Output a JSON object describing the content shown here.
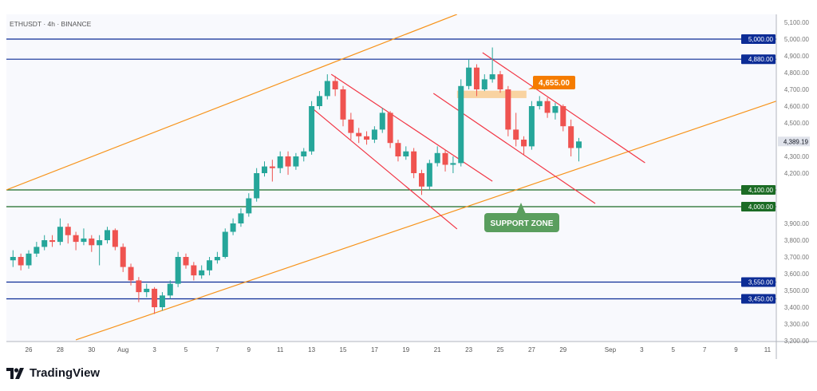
{
  "chart_data": {
    "type": "candlestick",
    "title": "ETHUSDT · 4h · BINANCE",
    "symbol": "ETHUSDT",
    "timeframe": "4h",
    "exchange": "BINANCE",
    "ylim": [
      3200,
      5150
    ],
    "y_ticks": [
      "5,100.00",
      "5,000.00",
      "4,900.00",
      "4,800.00",
      "4,700.00",
      "4,600.00",
      "4,500.00",
      "4,300.00",
      "4,200.00",
      "3,900.00",
      "3,800.00",
      "3,700.00",
      "3,600.00",
      "3,500.00",
      "3,400.00",
      "3,300.00",
      "3,200.00"
    ],
    "y_tick_values": [
      5100,
      5000,
      4900,
      4800,
      4700,
      4600,
      4500,
      4300,
      4200,
      3900,
      3800,
      3700,
      3600,
      3500,
      3400,
      3300,
      3200
    ],
    "x_ticks": [
      {
        "label": "26",
        "time": "Jul 26 00:00"
      },
      {
        "label": "28",
        "time": "Jul 28 00:00"
      },
      {
        "label": "30",
        "time": "Jul 30 00:00"
      },
      {
        "label": "Aug",
        "time": "Aug 1 00:00"
      },
      {
        "label": "3",
        "time": "Aug 3 00:00"
      },
      {
        "label": "5",
        "time": "Aug 5 00:00"
      },
      {
        "label": "7",
        "time": "Aug 7 00:00"
      },
      {
        "label": "9",
        "time": "Aug 9 00:00"
      },
      {
        "label": "11",
        "time": "Aug 11 00:00"
      },
      {
        "label": "13",
        "time": "Aug 13 00:00"
      },
      {
        "label": "15",
        "time": "Aug 15 00:00"
      },
      {
        "label": "17",
        "time": "Aug 17 00:00"
      },
      {
        "label": "19",
        "time": "Aug 19 00:00"
      },
      {
        "label": "21",
        "time": "Aug 21 00:00"
      },
      {
        "label": "23",
        "time": "Aug 23 00:00"
      },
      {
        "label": "25",
        "time": "Aug 25 00:00"
      },
      {
        "label": "27",
        "time": "Aug 27 00:00"
      },
      {
        "label": "29",
        "time": "Aug 29 00:00"
      },
      {
        "label": "Sep",
        "time": "Sep 1 00:00"
      },
      {
        "label": "3",
        "time": "Sep 3 00:00"
      },
      {
        "label": "5",
        "time": "Sep 5 00:00"
      },
      {
        "label": "7",
        "time": "Sep 7 00:00"
      },
      {
        "label": "9",
        "time": "Sep 9 00:00"
      },
      {
        "label": "11",
        "time": "Sep 11 00:00"
      }
    ],
    "candles_columns": [
      "time",
      "open",
      "high",
      "low",
      "close"
    ],
    "candles": [
      [
        "Jul 25 00:00",
        3680,
        3740,
        3640,
        3700
      ],
      [
        "Jul 25 12:00",
        3700,
        3720,
        3620,
        3650
      ],
      [
        "Jul 26 00:00",
        3650,
        3740,
        3630,
        3720
      ],
      [
        "Jul 26 12:00",
        3720,
        3790,
        3700,
        3760
      ],
      [
        "Jul 27 00:00",
        3760,
        3830,
        3740,
        3800
      ],
      [
        "Jul 27 12:00",
        3800,
        3830,
        3760,
        3790
      ],
      [
        "Jul 28 00:00",
        3790,
        3930,
        3770,
        3880
      ],
      [
        "Jul 28 12:00",
        3880,
        3900,
        3780,
        3830
      ],
      [
        "Jul 29 00:00",
        3830,
        3850,
        3740,
        3790
      ],
      [
        "Jul 29 12:00",
        3790,
        3870,
        3770,
        3810
      ],
      [
        "Jul 30 00:00",
        3810,
        3830,
        3730,
        3770
      ],
      [
        "Jul 30 12:00",
        3770,
        3830,
        3650,
        3800
      ],
      [
        "Jul 31 00:00",
        3800,
        3880,
        3780,
        3860
      ],
      [
        "Jul 31 12:00",
        3860,
        3870,
        3740,
        3760
      ],
      [
        "Aug 1 00:00",
        3760,
        3780,
        3610,
        3640
      ],
      [
        "Aug 1 12:00",
        3640,
        3660,
        3530,
        3560
      ],
      [
        "Aug 2 00:00",
        3560,
        3580,
        3430,
        3490
      ],
      [
        "Aug 2 12:00",
        3490,
        3540,
        3460,
        3510
      ],
      [
        "Aug 3 00:00",
        3510,
        3520,
        3360,
        3400
      ],
      [
        "Aug 3 12:00",
        3400,
        3490,
        3380,
        3470
      ],
      [
        "Aug 4 00:00",
        3470,
        3560,
        3450,
        3540
      ],
      [
        "Aug 4 12:00",
        3540,
        3730,
        3520,
        3700
      ],
      [
        "Aug 5 00:00",
        3700,
        3720,
        3630,
        3650
      ],
      [
        "Aug 5 12:00",
        3650,
        3670,
        3560,
        3590
      ],
      [
        "Aug 6 00:00",
        3590,
        3650,
        3570,
        3620
      ],
      [
        "Aug 6 12:00",
        3620,
        3700,
        3590,
        3680
      ],
      [
        "Aug 7 00:00",
        3680,
        3730,
        3660,
        3700
      ],
      [
        "Aug 7 12:00",
        3700,
        3870,
        3690,
        3850
      ],
      [
        "Aug 8 00:00",
        3850,
        3930,
        3830,
        3900
      ],
      [
        "Aug 8 12:00",
        3900,
        3990,
        3880,
        3960
      ],
      [
        "Aug 9 00:00",
        3960,
        4080,
        3940,
        4050
      ],
      [
        "Aug 9 12:00",
        4050,
        4230,
        4030,
        4200
      ],
      [
        "Aug 10 00:00",
        4200,
        4270,
        4180,
        4240
      ],
      [
        "Aug 10 12:00",
        4240,
        4280,
        4150,
        4230
      ],
      [
        "Aug 11 00:00",
        4230,
        4330,
        4200,
        4300
      ],
      [
        "Aug 11 12:00",
        4300,
        4330,
        4190,
        4240
      ],
      [
        "Aug 12 00:00",
        4240,
        4320,
        4220,
        4300
      ],
      [
        "Aug 12 12:00",
        4300,
        4350,
        4270,
        4330
      ],
      [
        "Aug 13 00:00",
        4330,
        4630,
        4310,
        4600
      ],
      [
        "Aug 13 12:00",
        4600,
        4690,
        4580,
        4660
      ],
      [
        "Aug 14 00:00",
        4660,
        4790,
        4640,
        4750
      ],
      [
        "Aug 14 12:00",
        4750,
        4780,
        4660,
        4700
      ],
      [
        "Aug 15 00:00",
        4700,
        4720,
        4480,
        4520
      ],
      [
        "Aug 15 12:00",
        4520,
        4560,
        4400,
        4440
      ],
      [
        "Aug 16 00:00",
        4440,
        4470,
        4380,
        4420
      ],
      [
        "Aug 16 12:00",
        4420,
        4450,
        4370,
        4400
      ],
      [
        "Aug 17 00:00",
        4400,
        4480,
        4380,
        4460
      ],
      [
        "Aug 17 12:00",
        4460,
        4590,
        4440,
        4560
      ],
      [
        "Aug 18 00:00",
        4560,
        4570,
        4350,
        4380
      ],
      [
        "Aug 18 12:00",
        4380,
        4400,
        4270,
        4300
      ],
      [
        "Aug 19 00:00",
        4300,
        4360,
        4280,
        4330
      ],
      [
        "Aug 19 12:00",
        4330,
        4350,
        4170,
        4200
      ],
      [
        "Aug 20 00:00",
        4200,
        4220,
        4070,
        4120
      ],
      [
        "Aug 20 12:00",
        4120,
        4280,
        4100,
        4260
      ],
      [
        "Aug 21 00:00",
        4260,
        4360,
        4240,
        4320
      ],
      [
        "Aug 21 12:00",
        4320,
        4340,
        4210,
        4250
      ],
      [
        "Aug 22 00:00",
        4250,
        4300,
        4200,
        4260
      ],
      [
        "Aug 22 12:00",
        4260,
        4760,
        4240,
        4720
      ],
      [
        "Aug 23 00:00",
        4720,
        4880,
        4700,
        4830
      ],
      [
        "Aug 23 12:00",
        4830,
        4850,
        4660,
        4700
      ],
      [
        "Aug 24 00:00",
        4700,
        4790,
        4690,
        4760
      ],
      [
        "Aug 24 12:00",
        4760,
        4950,
        4740,
        4790
      ],
      [
        "Aug 25 00:00",
        4790,
        4810,
        4680,
        4700
      ],
      [
        "Aug 25 12:00",
        4700,
        4720,
        4420,
        4460
      ],
      [
        "Aug 26 00:00",
        4460,
        4560,
        4360,
        4400
      ],
      [
        "Aug 26 12:00",
        4400,
        4420,
        4310,
        4360
      ],
      [
        "Aug 27 00:00",
        4360,
        4630,
        4340,
        4600
      ],
      [
        "Aug 27 12:00",
        4600,
        4660,
        4580,
        4630
      ],
      [
        "Aug 28 00:00",
        4630,
        4650,
        4530,
        4560
      ],
      [
        "Aug 28 12:00",
        4560,
        4620,
        4520,
        4600
      ],
      [
        "Aug 29 00:00",
        4600,
        4610,
        4450,
        4480
      ],
      [
        "Aug 29 12:00",
        4480,
        4520,
        4300,
        4350
      ],
      [
        "Aug 30 00:00",
        4350,
        4410,
        4270,
        4389.19
      ]
    ],
    "last_price": "4,389.19",
    "horizontal_levels": [
      {
        "value": 5000,
        "label": "5,000.00",
        "color": "#0c2c96"
      },
      {
        "value": 4880,
        "label": "4,880.00",
        "color": "#0c2c96"
      },
      {
        "value": 4100,
        "label": "4,100.00",
        "color": "#1b6b25"
      },
      {
        "value": 4000,
        "label": "4,000.00",
        "color": "#1b6b25"
      },
      {
        "value": 3550,
        "label": "3,550.00",
        "color": "#0c2c96"
      },
      {
        "value": 3450,
        "label": "3,450.00",
        "color": "#0c2c96"
      }
    ],
    "trendlines": [
      {
        "name": "ascending-channel-upper",
        "color": "#f7931a",
        "p1": [
          "Jul 24 14:00",
          4100
        ],
        "p2": [
          "Aug 22 06:00",
          5148
        ]
      },
      {
        "name": "ascending-channel-lower",
        "color": "#f7931a",
        "p1": [
          "Jul 29 00:00",
          3205
        ],
        "p2": [
          "Sep 11 16:00",
          4633
        ]
      },
      {
        "name": "descending-channel-1-upper",
        "color": "#f23645",
        "p1": [
          "Aug 14 06:00",
          4790
        ],
        "p2": [
          "Aug 24 12:00",
          4152
        ]
      },
      {
        "name": "descending-channel-1-lower",
        "color": "#f23645",
        "p1": [
          "Aug 13 00:00",
          4590
        ],
        "p2": [
          "Aug 22 06:00",
          3867
        ]
      },
      {
        "name": "descending-channel-2-upper",
        "color": "#f23645",
        "p1": [
          "Aug 23 21:00",
          4919
        ],
        "p2": [
          "Sep 3 05:00",
          4262
        ]
      },
      {
        "name": "descending-channel-2-lower",
        "color": "#f23645",
        "p1": [
          "Aug 20 18:00",
          4676
        ],
        "p2": [
          "Aug 31 01:00",
          4019
        ]
      }
    ],
    "zone": {
      "from": "Aug 22 06:00",
      "to": "Aug 26 16:00",
      "low": 4648,
      "high": 4692,
      "color": "#f9c98a"
    },
    "annotations": [
      {
        "text": "4,655.00",
        "color": "#f57c00"
      },
      {
        "text": "SUPPORT ZONE",
        "color": "#5a9e5e"
      }
    ],
    "colors": {
      "up": "#26a69a",
      "down": "#ef5350"
    }
  },
  "header": {
    "title": "ETHUSDT · 4h · BINANCE"
  },
  "branding": {
    "name": "TradingView"
  }
}
